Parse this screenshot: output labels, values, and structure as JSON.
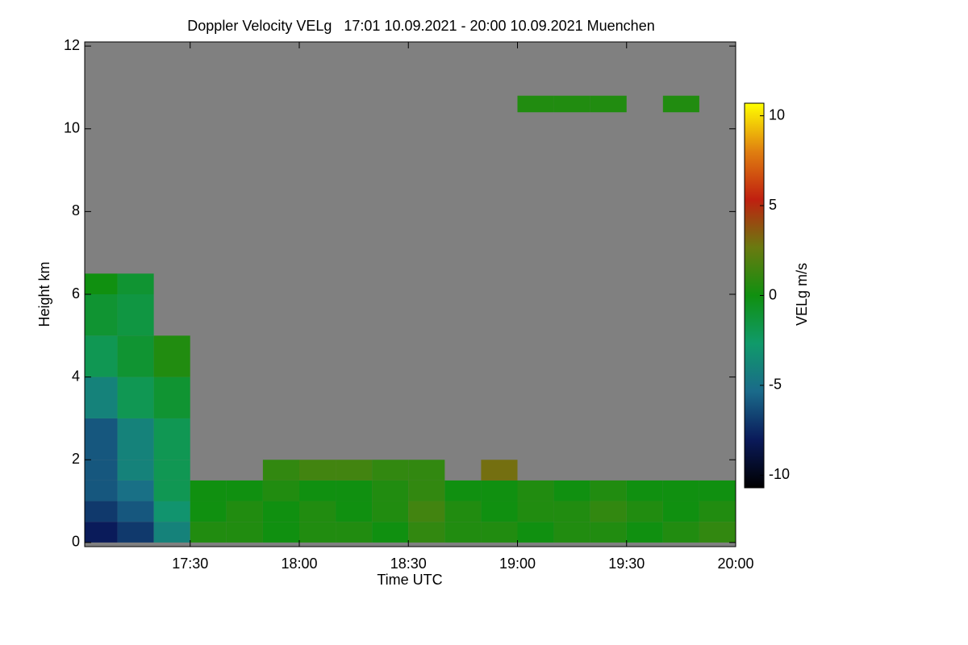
{
  "chart_data": {
    "type": "heatmap",
    "title": "Doppler Velocity VELg   17:01 10.09.2021 - 20:00 10.09.2021 Muenchen",
    "x_label": "Time UTC",
    "y_label": "Height km",
    "colorbar_label": "VELg m/s",
    "xlim": [
      17.0167,
      20.0
    ],
    "ylim": [
      -0.1,
      12.1
    ],
    "xticks": [
      {
        "value": 17.5,
        "label": "17:30"
      },
      {
        "value": 18,
        "label": "18:00"
      },
      {
        "value": 18.5,
        "label": "18:30"
      },
      {
        "value": 19,
        "label": "19:00"
      },
      {
        "value": 19.5,
        "label": "19:30"
      },
      {
        "value": 20,
        "label": "20:00"
      }
    ],
    "yticks": [
      0,
      2,
      4,
      6,
      8,
      10,
      12
    ],
    "clim": [
      -10.7,
      10.7
    ],
    "cticks": [
      -10,
      -5,
      0,
      5,
      10
    ],
    "colormap": [
      "#000000",
      "#0a1a5a",
      "#1a6a8a",
      "#109a6a",
      "#109010",
      "#6a7a10",
      "#c02010",
      "#e08010",
      "#ffff00"
    ],
    "missing_color": "#808080",
    "x_bins": [
      17.0167,
      17.1667,
      17.3333,
      17.5,
      17.6667,
      17.8333,
      18.0,
      18.1667,
      18.3333,
      18.5,
      18.6667,
      18.8333,
      19.0,
      19.1667,
      19.3333,
      19.5,
      19.6667,
      19.8333,
      20.0
    ],
    "y_bins": [
      0,
      0.5,
      1,
      1.5,
      2,
      3,
      4,
      5,
      6,
      6.5,
      10.4,
      10.8
    ],
    "z": [
      [
        -8,
        -7,
        -4,
        0.5,
        0.5,
        0,
        0.5,
        0.5,
        0,
        1,
        0.5,
        0.5,
        0,
        0.5,
        0.5,
        0,
        0.5,
        1
      ],
      [
        -7,
        -6,
        -3,
        0,
        0.5,
        0,
        0.5,
        0,
        0.5,
        1.5,
        0.5,
        0,
        0.5,
        0.5,
        1,
        0.5,
        0,
        0.5
      ],
      [
        -6,
        -5,
        -2,
        0,
        0,
        0.5,
        0,
        0,
        0.5,
        1,
        0,
        0,
        0.5,
        0,
        0.5,
        0,
        0,
        0
      ],
      [
        -6,
        -4,
        -2,
        null,
        null,
        1,
        1.5,
        1.5,
        1,
        1,
        null,
        3,
        null,
        null,
        null,
        null,
        null,
        null
      ],
      [
        -6,
        -4,
        -2,
        null,
        null,
        null,
        null,
        null,
        null,
        null,
        null,
        null,
        null,
        null,
        null,
        null,
        null,
        null
      ],
      [
        -4,
        -2,
        -1,
        null,
        null,
        null,
        null,
        null,
        null,
        null,
        null,
        null,
        null,
        null,
        null,
        null,
        null,
        null
      ],
      [
        -2,
        -1,
        0.5,
        null,
        null,
        null,
        null,
        null,
        null,
        null,
        null,
        null,
        null,
        null,
        null,
        null,
        null,
        null
      ],
      [
        -1,
        -1.5,
        null,
        null,
        null,
        null,
        null,
        null,
        null,
        null,
        null,
        null,
        null,
        null,
        null,
        null,
        null,
        null
      ],
      [
        0,
        -1,
        null,
        null,
        null,
        null,
        null,
        null,
        null,
        null,
        null,
        null,
        null,
        null,
        null,
        null,
        null,
        null
      ],
      [
        null,
        null,
        null,
        null,
        null,
        null,
        null,
        null,
        null,
        null,
        null,
        null,
        null,
        null,
        null,
        null,
        null,
        null
      ],
      [
        null,
        null,
        null,
        null,
        null,
        null,
        null,
        null,
        null,
        null,
        null,
        null,
        0.5,
        0.5,
        0.5,
        null,
        0.5,
        null
      ]
    ]
  }
}
